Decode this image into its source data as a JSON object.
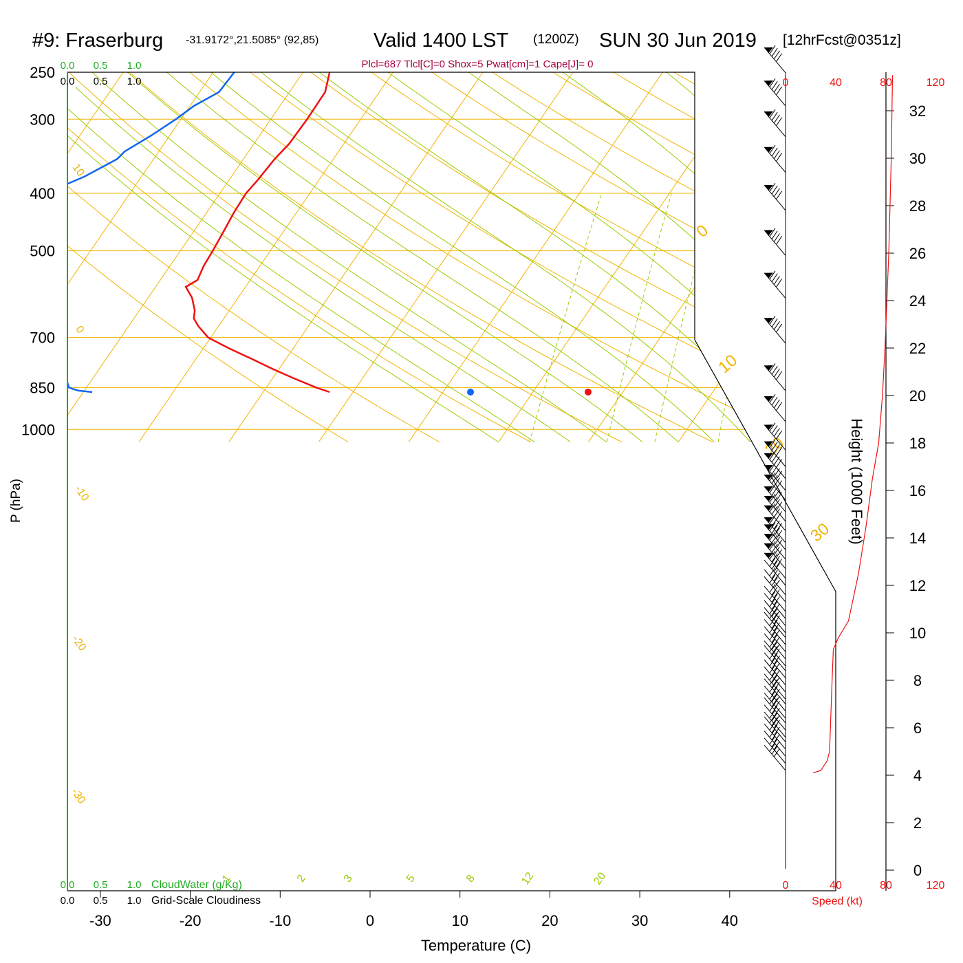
{
  "header": {
    "station": "#9: Fraserburg",
    "coords": "-31.9172°,21.5085° (92,85)",
    "valid": "Valid 1400 LST",
    "utc": "(1200Z)",
    "date": "SUN 30 Jun 2019",
    "forecast": "[12hrFcst@0351z]",
    "indices": "Plcl=687 Tlcl[C]=0 Shox=5 Pwat[cm]=1 Cape[J]= 0"
  },
  "colors": {
    "temperature": "#ee1111",
    "dewpoint": "#1166ee",
    "isotherm_isobar": "#f0b400",
    "mixing_ratio": "#99cc00",
    "cloud_scale": "#22aa22",
    "wind_speed": "#ee1111",
    "indices_text": "#aa0044"
  },
  "chart_data": {
    "type": "line",
    "diagram": "skew-T log-P",
    "xlabel": "Temperature (C)",
    "ylabel": "P (hPa)",
    "x_ticks": [
      -30,
      -20,
      -10,
      0,
      10,
      20,
      30,
      40
    ],
    "y_ticks": [
      250,
      300,
      400,
      500,
      700,
      850,
      1000
    ],
    "height_axis": {
      "label": "Height (1000 Feet)",
      "ticks": [
        0,
        2,
        4,
        6,
        8,
        10,
        12,
        14,
        16,
        18,
        20,
        22,
        24,
        26,
        28,
        30,
        32
      ]
    },
    "speed_axis": {
      "label": "Speed (kt)",
      "ticks": [
        "0",
        "40",
        "80",
        "120"
      ]
    },
    "top_scales": {
      "cloudwater_ticks": [
        "0.0",
        "0.5",
        "1.0"
      ],
      "cloudiness_ticks": [
        "0.0",
        "0.5",
        "1.0"
      ]
    },
    "bottom_scales": {
      "cloudwater_label": "CloudWater (g/Kg)",
      "cloudiness_label": "Grid-Scale Cloudiness",
      "cloudwater_ticks": [
        "0.0",
        "0.5",
        "1.0"
      ],
      "cloudiness_ticks": [
        "0.0",
        "0.5",
        "1.0"
      ]
    },
    "mixing_ratio_labels": [
      "1",
      "2",
      "3",
      "5",
      "8",
      "12",
      "20"
    ],
    "dry_adiabat_labels": [
      "10",
      "0",
      "-10",
      "-20",
      "-30"
    ],
    "moist_adiabat_labels": [
      "0",
      "10",
      "20",
      "30"
    ],
    "surface": {
      "pressure": 865,
      "temperature": 24.4,
      "dewpoint": 11.1
    },
    "series": [
      {
        "name": "Temperature",
        "points": [
          [
            250,
            -4.5
          ],
          [
            270,
            -5.0
          ],
          [
            300,
            -7.0
          ],
          [
            330,
            -9.0
          ],
          [
            350,
            -10.6
          ],
          [
            380,
            -12.5
          ],
          [
            400,
            -13.8
          ],
          [
            430,
            -15.1
          ],
          [
            470,
            -16.5
          ],
          [
            500,
            -17.5
          ],
          [
            530,
            -18.5
          ],
          [
            560,
            -19.2
          ],
          [
            575,
            -20.5
          ],
          [
            600,
            -19.8
          ],
          [
            630,
            -19.5
          ],
          [
            650,
            -19.6
          ],
          [
            670,
            -19.1
          ],
          [
            700,
            -18.0
          ],
          [
            730,
            -15.7
          ],
          [
            760,
            -13.2
          ],
          [
            790,
            -10.9
          ],
          [
            820,
            -8.5
          ],
          [
            850,
            -6.0
          ],
          [
            865,
            -4.5
          ]
        ]
      },
      {
        "name": "Dewpoint",
        "points": [
          [
            250,
            -15.1
          ],
          [
            270,
            -16.8
          ],
          [
            285,
            -19.6
          ],
          [
            300,
            -21.6
          ],
          [
            320,
            -24.4
          ],
          [
            340,
            -27.3
          ],
          [
            350,
            -28.1
          ],
          [
            375,
            -31.8
          ],
          [
            415,
            -38.6
          ],
          [
            450,
            -41.9
          ],
          [
            500,
            -46.1
          ],
          [
            530,
            -48.6
          ],
          [
            560,
            -49.0
          ],
          [
            580,
            -45.9
          ],
          [
            615,
            -40.5
          ],
          [
            635,
            -37.7
          ],
          [
            660,
            -36.0
          ],
          [
            675,
            -36.6
          ],
          [
            700,
            -36.4
          ],
          [
            740,
            -35.7
          ],
          [
            780,
            -34.8
          ],
          [
            820,
            -33.8
          ],
          [
            850,
            -33.5
          ],
          [
            860,
            -32.5
          ],
          [
            865,
            -30.9
          ]
        ]
      }
    ],
    "wind_speed_profile": [
      [
        4.1,
        22
      ],
      [
        4.2,
        28
      ],
      [
        4.6,
        33
      ],
      [
        5.0,
        35
      ],
      [
        8.0,
        37
      ],
      [
        9.3,
        38
      ],
      [
        9.8,
        42
      ],
      [
        10.5,
        50
      ],
      [
        12.5,
        58
      ],
      [
        14.5,
        64
      ],
      [
        16.5,
        69
      ],
      [
        18.0,
        74
      ],
      [
        20.0,
        77
      ],
      [
        22.0,
        79
      ],
      [
        26.0,
        82
      ],
      [
        30.0,
        84
      ],
      [
        33.5,
        85
      ]
    ],
    "wind_barb_heights": [
      33.6,
      32.2,
      30.9,
      29.4,
      27.8,
      25.9,
      24.1,
      22.2,
      20.2,
      18.9,
      17.7,
      17.0,
      16.5,
      16.0,
      15.6,
      15.1,
      14.7,
      14.3,
      13.8,
      13.5,
      13.1,
      12.7,
      12.3,
      12.0,
      11.6,
      11.3,
      10.9,
      10.6,
      10.3,
      10.0,
      9.8,
      9.5,
      9.2,
      8.9,
      8.6,
      8.4,
      8.1,
      7.8,
      7.5,
      7.2,
      7.0,
      6.7,
      6.4,
      6.2,
      5.9,
      5.6,
      5.4,
      5.1,
      4.8,
      4.5,
      4.2
    ]
  }
}
